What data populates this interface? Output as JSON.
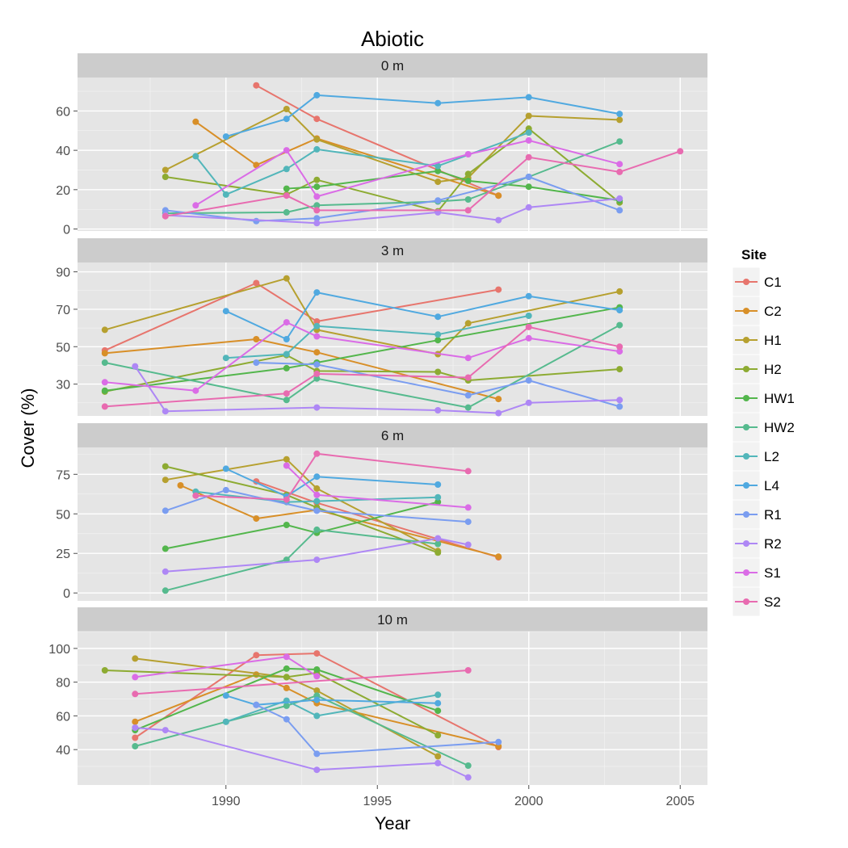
{
  "chart_data": {
    "type": "line",
    "title": "Abiotic",
    "xlabel": "Year",
    "ylabel": "Cover (%)",
    "x_ticks": [
      1990,
      1995,
      2000,
      2005
    ],
    "xlim": [
      1985.1,
      2005.9
    ],
    "legend": {
      "title": "Site",
      "position": "right",
      "entries": [
        "C1",
        "C2",
        "H1",
        "H2",
        "HW1",
        "HW2",
        "L2",
        "L4",
        "R1",
        "R2",
        "S1",
        "S2"
      ]
    },
    "colors": {
      "C1": "#E7756D",
      "C2": "#D88F28",
      "H1": "#B6A02F",
      "H2": "#8DAB32",
      "HW1": "#53B64C",
      "HW2": "#56BA8E",
      "L2": "#52B6BA",
      "L4": "#50A9E0",
      "R1": "#7A9DF0",
      "R2": "#AE87F5",
      "S1": "#DA6CE6",
      "S2": "#E86BB0"
    },
    "panels": [
      {
        "label": "0 m",
        "ylim": [
          -1,
          77
        ],
        "y_ticks": [
          0,
          20,
          40,
          60
        ],
        "series": {
          "C1": [
            [
              1991,
              73
            ],
            [
              1993,
              56
            ],
            [
              1999,
              17
            ]
          ],
          "C2": [
            [
              1989,
              54.5
            ],
            [
              1991,
              32.5
            ],
            [
              1993,
              46
            ],
            [
              1999,
              17
            ]
          ],
          "H1": [
            [
              1988,
              30
            ],
            [
              1992,
              61
            ],
            [
              1993,
              45.5
            ],
            [
              1997,
              24
            ],
            [
              1998,
              26
            ],
            [
              2000,
              57.5
            ],
            [
              2003,
              55.5
            ]
          ],
          "H2": [
            [
              1988,
              26.5
            ],
            [
              1992,
              17.5
            ],
            [
              1993,
              25
            ],
            [
              1997,
              9
            ],
            [
              1998,
              28
            ],
            [
              2000,
              51
            ],
            [
              2003,
              13.5
            ]
          ],
          "HW1": [
            [
              1992,
              20.5
            ],
            [
              1993,
              21.5
            ],
            [
              1997,
              29.5
            ],
            [
              1998,
              24.5
            ],
            [
              2000,
              21.5
            ],
            [
              2003,
              14.5
            ]
          ],
          "HW2": [
            [
              1988,
              8
            ],
            [
              1992,
              8.5
            ],
            [
              1993,
              12
            ],
            [
              1997,
              14
            ],
            [
              1998,
              15
            ],
            [
              2000,
              26.5
            ],
            [
              2003,
              44.5
            ]
          ],
          "L2": [
            [
              1989,
              37
            ],
            [
              1990,
              17.5
            ],
            [
              1992,
              30.5
            ],
            [
              1993,
              40.5
            ],
            [
              1997,
              32
            ],
            [
              2000,
              49
            ]
          ],
          "L4": [
            [
              1990,
              47
            ],
            [
              1992,
              56
            ],
            [
              1993,
              68
            ],
            [
              1997,
              64
            ],
            [
              2000,
              67
            ],
            [
              2003,
              58.5
            ]
          ],
          "R1": [
            [
              1988,
              9.5
            ],
            [
              1991,
              4
            ],
            [
              1993,
              5.5
            ],
            [
              1997,
              14.5
            ],
            [
              2000,
              26.5
            ],
            [
              2003,
              9.5
            ]
          ],
          "R2": [
            [
              1988,
              7
            ],
            [
              1993,
              3
            ],
            [
              1997,
              8.5
            ],
            [
              1999,
              4.5
            ],
            [
              2000,
              11
            ],
            [
              2003,
              15.5
            ]
          ],
          "S1": [
            [
              1989,
              12
            ],
            [
              1992,
              40
            ],
            [
              1993,
              16.5
            ],
            [
              1998,
              38
            ],
            [
              2000,
              45
            ],
            [
              2003,
              33
            ]
          ],
          "S2": [
            [
              1988,
              6.5
            ],
            [
              1992,
              17
            ],
            [
              1993,
              9.5
            ],
            [
              1998,
              9.5
            ],
            [
              2000,
              36.5
            ],
            [
              2003,
              29
            ],
            [
              2005,
              39.5
            ]
          ]
        }
      },
      {
        "label": "3 m",
        "ylim": [
          13,
          95
        ],
        "y_ticks": [
          30,
          50,
          70,
          90
        ],
        "series": {
          "C1": [
            [
              1986,
              48
            ],
            [
              1991,
              84
            ],
            [
              1993,
              63.5
            ],
            [
              1999,
              80.5
            ]
          ],
          "C2": [
            [
              1986,
              46.5
            ],
            [
              1991,
              54
            ],
            [
              1993,
              47
            ],
            [
              1999,
              22
            ]
          ],
          "H1": [
            [
              1986,
              59
            ],
            [
              1992,
              86.5
            ],
            [
              1993,
              59
            ],
            [
              1997,
              46
            ],
            [
              1998,
              62.5
            ],
            [
              2003,
              79.5
            ]
          ],
          "H2": [
            [
              1986,
              26
            ],
            [
              1992,
              45.5
            ],
            [
              1993,
              37
            ],
            [
              1997,
              36.5
            ],
            [
              1998,
              32
            ],
            [
              2003,
              38
            ]
          ],
          "HW1": [
            [
              1986,
              26.5
            ],
            [
              1992,
              38.5
            ],
            [
              1993,
              41.5
            ],
            [
              1997,
              53.5
            ],
            [
              2003,
              71
            ]
          ],
          "HW2": [
            [
              1986,
              41.5
            ],
            [
              1992,
              21.5
            ],
            [
              1993,
              33
            ],
            [
              1998,
              17.5
            ],
            [
              2003,
              61.5
            ]
          ],
          "L2": [
            [
              1990,
              44
            ],
            [
              1992,
              46
            ],
            [
              1993,
              61
            ],
            [
              1997,
              56.5
            ],
            [
              2000,
              66.5
            ]
          ],
          "L4": [
            [
              1990,
              69
            ],
            [
              1992,
              54
            ],
            [
              1993,
              79
            ],
            [
              1997,
              66
            ],
            [
              2000,
              77
            ],
            [
              2003,
              69.5
            ]
          ],
          "R1": [
            [
              1991,
              41.5
            ],
            [
              1993,
              40.5
            ],
            [
              1998,
              24
            ],
            [
              2000,
              32
            ],
            [
              2003,
              18
            ]
          ],
          "R2": [
            [
              1987,
              39.5
            ],
            [
              1988,
              15.5
            ],
            [
              1993,
              17.5
            ],
            [
              1997,
              16
            ],
            [
              1999,
              14.5
            ],
            [
              2000,
              20
            ],
            [
              2003,
              21.5
            ]
          ],
          "S1": [
            [
              1986,
              31
            ],
            [
              1989,
              26.5
            ],
            [
              1992,
              63
            ],
            [
              1993,
              55.5
            ],
            [
              1998,
              44
            ],
            [
              2000,
              54.5
            ],
            [
              2003,
              47.5
            ]
          ],
          "S2": [
            [
              1986,
              18
            ],
            [
              1992,
              25
            ],
            [
              1993,
              35.5
            ],
            [
              1998,
              33.5
            ],
            [
              2000,
              60.5
            ],
            [
              2003,
              50
            ]
          ]
        }
      },
      {
        "label": "6 m",
        "ylim": [
          -5,
          92
        ],
        "y_ticks": [
          0,
          25,
          50,
          75
        ],
        "series": {
          "C1": [
            [
              1991,
              70.5
            ],
            [
              1993,
              57
            ],
            [
              1999,
              22.5
            ]
          ],
          "C2": [
            [
              1988.5,
              68
            ],
            [
              1991,
              47
            ],
            [
              1993,
              52.5
            ],
            [
              1999,
              23
            ]
          ],
          "H1": [
            [
              1988,
              71.5
            ],
            [
              1992,
              84.5
            ],
            [
              1993,
              66
            ],
            [
              1997,
              26.5
            ]
          ],
          "H2": [
            [
              1988,
              80
            ],
            [
              1992,
              62
            ],
            [
              1993,
              54
            ],
            [
              1997,
              25.5
            ]
          ],
          "HW1": [
            [
              1988,
              28
            ],
            [
              1992,
              43
            ],
            [
              1993,
              38
            ],
            [
              1997,
              57.5
            ]
          ],
          "HW2": [
            [
              1988,
              1.5
            ],
            [
              1992,
              21
            ],
            [
              1993,
              40
            ],
            [
              1997,
              31
            ]
          ],
          "L2": [
            [
              1989,
              64
            ],
            [
              1992,
              57.5
            ],
            [
              1993,
              58
            ],
            [
              1997,
              60.5
            ]
          ],
          "L4": [
            [
              1990,
              78.5
            ],
            [
              1992,
              61
            ],
            [
              1993,
              73.5
            ],
            [
              1997,
              68.5
            ]
          ],
          "R1": [
            [
              1988,
              52
            ],
            [
              1990,
              65
            ],
            [
              1993,
              52
            ],
            [
              1998,
              45
            ]
          ],
          "R2": [
            [
              1988,
              13.5
            ],
            [
              1993,
              21
            ],
            [
              1997,
              34.5
            ],
            [
              1998,
              30.5
            ]
          ],
          "S1": [
            [
              1992,
              80.5
            ],
            [
              1993,
              62
            ],
            [
              1998,
              54
            ]
          ],
          "S2": [
            [
              1989,
              61.5
            ],
            [
              1992,
              59
            ],
            [
              1993,
              88
            ],
            [
              1998,
              77
            ]
          ]
        }
      },
      {
        "label": "10 m",
        "ylim": [
          19,
          110
        ],
        "y_ticks": [
          40,
          60,
          80,
          100
        ],
        "series": {
          "C1": [
            [
              1987,
              47
            ],
            [
              1991,
              96
            ],
            [
              1993,
              97
            ],
            [
              1999,
              41.5
            ]
          ],
          "C2": [
            [
              1987,
              56.5
            ],
            [
              1991,
              84.5
            ],
            [
              1992,
              76.5
            ],
            [
              1993,
              67.5
            ],
            [
              1999,
              42
            ]
          ],
          "H1": [
            [
              1987,
              94
            ],
            [
              1992,
              83
            ],
            [
              1993,
              75
            ],
            [
              1997,
              36
            ]
          ],
          "H2": [
            [
              1986,
              87
            ],
            [
              1992,
              83
            ],
            [
              1993,
              85.5
            ],
            [
              1997,
              48.5
            ]
          ],
          "HW1": [
            [
              1987,
              51.5
            ],
            [
              1992,
              88
            ],
            [
              1993,
              87.5
            ],
            [
              1997,
              63
            ]
          ],
          "HW2": [
            [
              1987,
              42
            ],
            [
              1990,
              56.5
            ],
            [
              1992,
              66
            ],
            [
              1993,
              72
            ],
            [
              1998,
              30.5
            ]
          ],
          "L2": [
            [
              1990,
              56.5
            ],
            [
              1992,
              69
            ],
            [
              1993,
              60
            ],
            [
              1997,
              72.5
            ]
          ],
          "L4": [
            [
              1990,
              72
            ],
            [
              1991,
              66.5
            ],
            [
              1993,
              69.5
            ],
            [
              1997,
              67.5
            ]
          ],
          "R1": [
            [
              1991,
              66.5
            ],
            [
              1992,
              58
            ],
            [
              1993,
              37.5
            ],
            [
              1999,
              44.5
            ]
          ],
          "R2": [
            [
              1987,
              53
            ],
            [
              1988,
              51.5
            ],
            [
              1993,
              28
            ],
            [
              1997,
              32
            ],
            [
              1998,
              23.5
            ]
          ],
          "S1": [
            [
              1987,
              83
            ],
            [
              1992,
              95
            ],
            [
              1993,
              83.5
            ]
          ],
          "S2": [
            [
              1987,
              73
            ],
            [
              1998,
              87
            ]
          ]
        }
      }
    ]
  }
}
